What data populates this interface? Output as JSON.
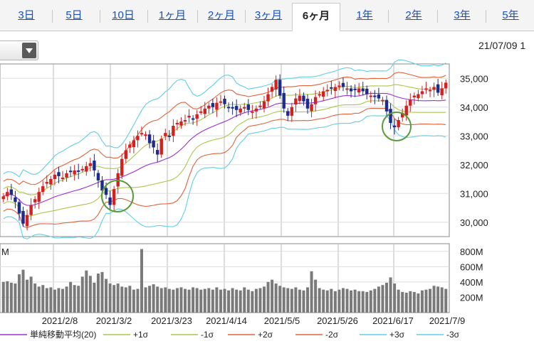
{
  "tabs": [
    {
      "label": "3日",
      "selected": false
    },
    {
      "label": "5日",
      "selected": false
    },
    {
      "label": "10日",
      "selected": false
    },
    {
      "label": "1ヶ月",
      "selected": false
    },
    {
      "label": "2ヶ月",
      "selected": false
    },
    {
      "label": "3ヶ月",
      "selected": false
    },
    {
      "label": "6ヶ月",
      "selected": true
    },
    {
      "label": "1年",
      "selected": false
    },
    {
      "label": "2年",
      "selected": false
    },
    {
      "label": "3年",
      "selected": false
    },
    {
      "label": "5年",
      "selected": false
    }
  ],
  "datetime": "21/07/09 1",
  "colors": {
    "up": "#d42020",
    "down": "#1c2b8c",
    "sma": "#9b30d0",
    "s1": "#a8c84a",
    "s2": "#e0623a",
    "s3": "#5fcfe5",
    "circle": "#5a9a3a",
    "volume": "#7a7a7a"
  },
  "chart_data": {
    "type": "candlestick",
    "ylim": [
      29500,
      35500
    ],
    "y_ticks": [
      "35,000",
      "34,000",
      "33,000",
      "32,000",
      "31,000",
      "30,000"
    ],
    "volume_ylim": [
      0,
      900
    ],
    "volume_ticks": [
      "800M",
      "600M",
      "400M",
      "200M"
    ],
    "volume_label": "M",
    "x_tick_labels": [
      "2021/2/8",
      "2021/3/2",
      "2021/3/23",
      "2021/4/14",
      "2021/5/5",
      "2021/5/26",
      "2021/6/17",
      "2021/7/9"
    ],
    "legend": [
      "単純移動平均(20)",
      "+1σ",
      "-1σ",
      "+2σ",
      "-2σ",
      "+3σ",
      "-3σ"
    ],
    "closes": [
      30900,
      31050,
      30950,
      30700,
      30300,
      29950,
      30250,
      30600,
      30800,
      31050,
      31250,
      31400,
      31500,
      31650,
      31600,
      31550,
      31700,
      31750,
      31800,
      31750,
      31850,
      31950,
      32050,
      31800,
      31450,
      31100,
      30950,
      30600,
      31150,
      31700,
      32200,
      32500,
      32700,
      32850,
      33000,
      33100,
      33050,
      32750,
      32600,
      32350,
      32900,
      33100,
      33000,
      33350,
      33450,
      33500,
      33550,
      33700,
      33600,
      33750,
      33850,
      33950,
      34050,
      34000,
      34150,
      34200,
      34100,
      34000,
      33950,
      33900,
      33950,
      34000,
      33900,
      33850,
      33950,
      34050,
      34200,
      34450,
      34700,
      34950,
      34400,
      33950,
      33700,
      34000,
      34300,
      34400,
      34200,
      33950,
      34100,
      34350,
      34450,
      34550,
      34600,
      34650,
      34700,
      34750,
      34700,
      34650,
      34550,
      34600,
      34650,
      34550,
      34450,
      34400,
      34350,
      34300,
      34250,
      33850,
      33450,
      33300,
      33550,
      33800,
      34050,
      34250,
      34400,
      34450,
      34550,
      34650,
      34600,
      34700,
      34500,
      34650,
      34850
    ],
    "volumes": [
      400,
      410,
      390,
      380,
      500,
      560,
      430,
      470,
      380,
      340,
      360,
      320,
      330,
      300,
      320,
      310,
      340,
      400,
      360,
      350,
      470,
      550,
      480,
      390,
      510,
      530,
      440,
      380,
      360,
      380,
      340,
      330,
      350,
      300,
      310,
      830,
      330,
      350,
      370,
      340,
      320,
      330,
      310,
      300,
      320,
      330,
      310,
      300,
      330,
      320,
      300,
      310,
      320,
      300,
      330,
      300,
      310,
      290,
      320,
      300,
      290,
      330,
      300,
      280,
      310,
      320,
      340,
      400,
      430,
      380,
      350,
      330,
      320,
      310,
      330,
      300,
      290,
      330,
      540,
      430,
      320,
      300,
      290,
      310,
      280,
      300,
      320,
      310,
      290,
      300,
      280,
      280,
      270,
      290,
      310,
      340,
      360,
      390,
      460,
      380,
      300,
      270,
      260,
      280,
      270,
      250,
      290,
      300,
      310,
      350,
      340,
      330,
      310
    ]
  }
}
